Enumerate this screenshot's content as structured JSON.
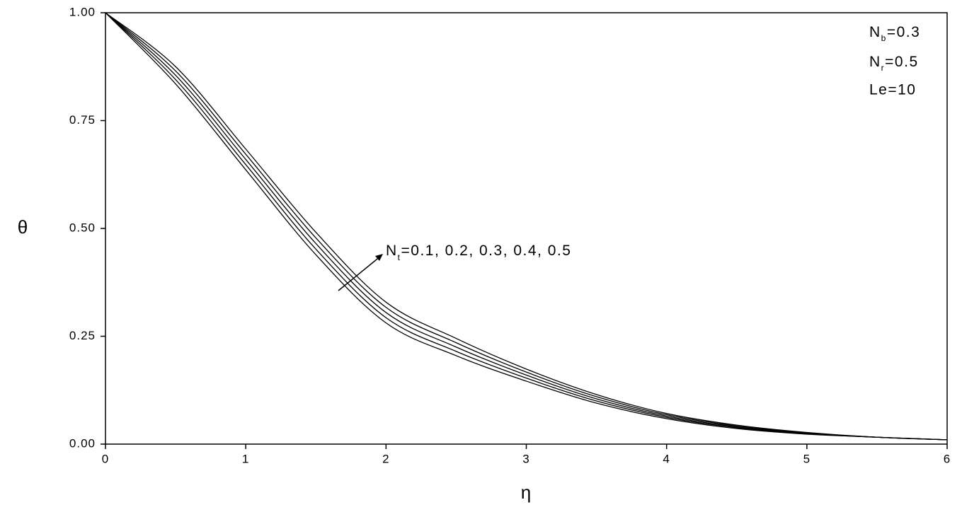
{
  "chart_data": {
    "type": "line",
    "x": [
      0,
      0.5,
      1,
      1.5,
      2,
      2.5,
      3,
      3.5,
      4,
      4.5,
      5,
      5.5,
      6
    ],
    "series": [
      {
        "color": "#000000",
        "values": [
          1,
          0.835,
          0.636,
          0.439,
          0.281,
          0.205,
          0.146,
          0.095,
          0.059,
          0.036,
          0.023,
          0.016,
          0.01
        ]
      },
      {
        "color": "#000000",
        "values": [
          1,
          0.845,
          0.648,
          0.452,
          0.293,
          0.215,
          0.153,
          0.1,
          0.062,
          0.038,
          0.024,
          0.016,
          0.01
        ]
      },
      {
        "color": "#000000",
        "values": [
          1,
          0.855,
          0.66,
          0.465,
          0.305,
          0.225,
          0.16,
          0.105,
          0.065,
          0.04,
          0.025,
          0.016,
          0.01
        ]
      },
      {
        "color": "#000000",
        "values": [
          1,
          0.865,
          0.672,
          0.478,
          0.317,
          0.235,
          0.167,
          0.11,
          0.068,
          0.042,
          0.026,
          0.016,
          0.01
        ]
      },
      {
        "color": "#000000",
        "values": [
          1,
          0.875,
          0.684,
          0.491,
          0.329,
          0.245,
          0.174,
          0.115,
          0.071,
          0.044,
          0.027,
          0.016,
          0.01
        ]
      }
    ],
    "xlim": [
      0,
      6
    ],
    "xticks": [
      0,
      1,
      2,
      3,
      4,
      5,
      6
    ],
    "ylim": [
      0,
      1
    ],
    "yticks": [
      {
        "value": 0,
        "label": "0.00"
      },
      {
        "value": 0.25,
        "label": "0.25"
      },
      {
        "value": 0.5,
        "label": "0.50"
      },
      {
        "value": 0.75,
        "label": "0.75"
      },
      {
        "value": 1,
        "label": "1.00"
      }
    ],
    "xlabel": "η",
    "ylabel": "θ",
    "annotations": [
      {
        "main": "N",
        "sub": "b",
        "rest": "=0.3"
      },
      {
        "main": "N",
        "sub": "r",
        "rest": "=0.5"
      },
      {
        "main": "Le=10"
      },
      {
        "main": "N",
        "sub": "t",
        "rest": "=0.1, 0.2, 0.3, 0.4, 0.5"
      }
    ]
  }
}
